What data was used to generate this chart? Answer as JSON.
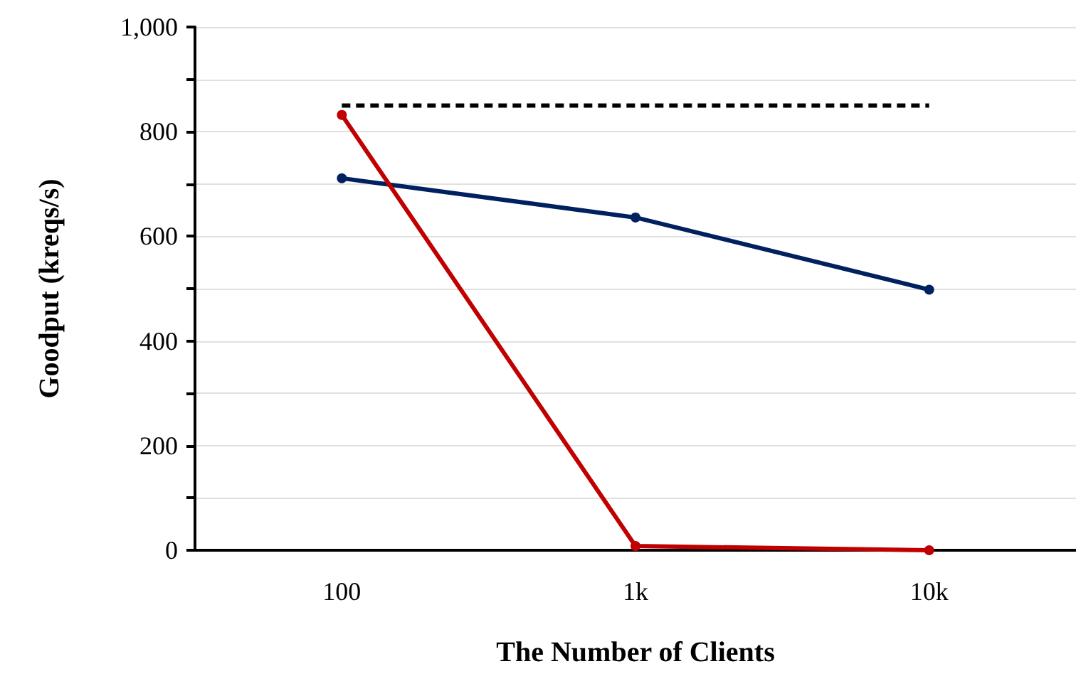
{
  "chart_data": {
    "type": "line",
    "xlabel": "The Number of Clients",
    "ylabel": "Goodput (kreqs/s)",
    "categories": [
      "100",
      "1k",
      "10k"
    ],
    "series": [
      {
        "color": "#000000",
        "values": [
          850,
          850,
          850
        ],
        "marker": "none",
        "line_style": "dashed"
      },
      {
        "color": "#002060",
        "values": [
          711,
          636,
          498
        ],
        "marker": "circle",
        "line_style": "solid"
      },
      {
        "color": "#c00000",
        "values": [
          832,
          8,
          0
        ],
        "marker": "circle",
        "line_style": "solid"
      }
    ],
    "ylim": [
      0,
      1000
    ],
    "yticks": [
      0,
      {
        "value": 100,
        "label": null
      },
      {
        "value": 200,
        "label": "200"
      },
      {
        "value": 300,
        "label": null
      },
      {
        "value": 400,
        "label": "400"
      },
      {
        "value": 500,
        "label": null
      },
      {
        "value": 600,
        "label": "600"
      },
      {
        "value": 700,
        "label": null
      },
      {
        "value": 800,
        "label": "800"
      },
      {
        "value": 900,
        "label": null
      },
      {
        "value": 1000,
        "label": "1,000"
      }
    ],
    "grid": "y"
  }
}
